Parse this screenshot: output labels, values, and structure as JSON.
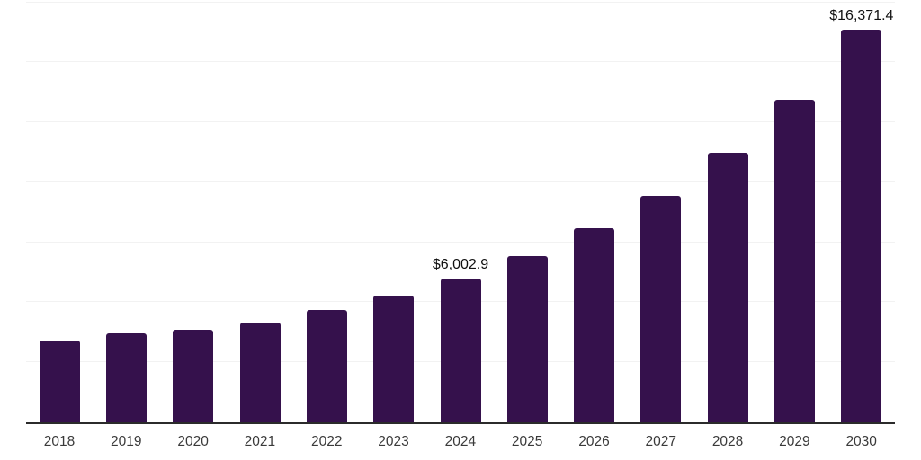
{
  "chart_data": {
    "type": "bar",
    "title": "",
    "xlabel": "",
    "ylabel": "",
    "categories": [
      "2018",
      "2019",
      "2020",
      "2021",
      "2022",
      "2023",
      "2024",
      "2025",
      "2026",
      "2027",
      "2028",
      "2029",
      "2030"
    ],
    "values": [
      3390,
      3690,
      3840,
      4175,
      4670,
      5295,
      6002.9,
      6940,
      8090,
      9435,
      11220,
      13460,
      16371.4
    ],
    "data_labels": [
      "",
      "",
      "",
      "",
      "",
      "",
      "$6,002.9",
      "",
      "",
      "",
      "",
      "",
      "$16,371.4"
    ],
    "ylim": [
      0,
      17600
    ],
    "gridline_interval": 2500,
    "grid": "horizontal-only",
    "legend": "none",
    "colors": {
      "bar": "#35114c",
      "gridline": "#f2f2f2",
      "axis_line": "#2b2b2b",
      "tick_label": "#3a3a3a",
      "data_label": "#111111",
      "background": "#ffffff"
    }
  }
}
